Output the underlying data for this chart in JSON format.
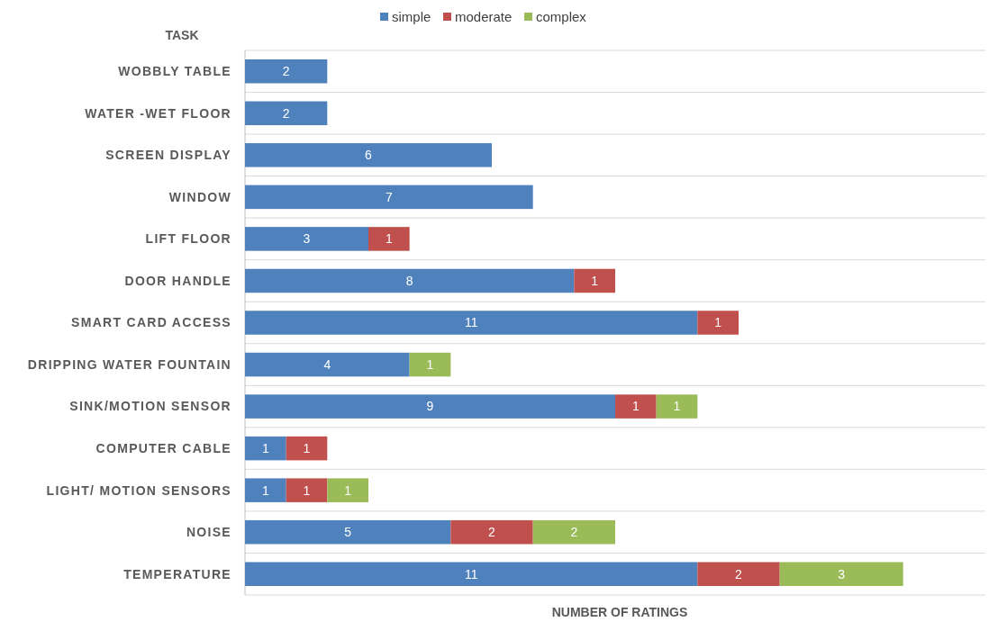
{
  "chart_data": {
    "type": "bar",
    "orientation": "horizontal",
    "stacked": true,
    "ylabel": "TASK",
    "xlabel": "NUMBER OF RATINGS",
    "categories": [
      "WOBBLY TABLE",
      "WATER -WET FLOOR",
      "SCREEN DISPLAY",
      "WINDOW",
      "LIFT FLOOR",
      "DOOR HANDLE",
      "SMART CARD ACCESS",
      "DRIPPING WATER FOUNTAIN",
      "SINK/MOTION SENSOR",
      "COMPUTER CABLE",
      "LIGHT/ MOTION SENSORS",
      "NOISE",
      "TEMPERATURE"
    ],
    "series": [
      {
        "name": "simple",
        "color": "#4f81bd",
        "values": [
          2,
          2,
          6,
          7,
          3,
          8,
          11,
          4,
          9,
          1,
          1,
          5,
          11
        ]
      },
      {
        "name": "moderate",
        "color": "#c0504d",
        "values": [
          null,
          null,
          null,
          null,
          1,
          1,
          1,
          null,
          1,
          1,
          1,
          2,
          2
        ]
      },
      {
        "name": "complex",
        "color": "#9bbb59",
        "values": [
          null,
          null,
          null,
          null,
          null,
          null,
          null,
          1,
          1,
          null,
          1,
          2,
          3
        ]
      }
    ],
    "xlim": [
      0,
      18
    ],
    "grid": "y",
    "legend": "top",
    "data_labels": true,
    "tick_labels": "y"
  }
}
